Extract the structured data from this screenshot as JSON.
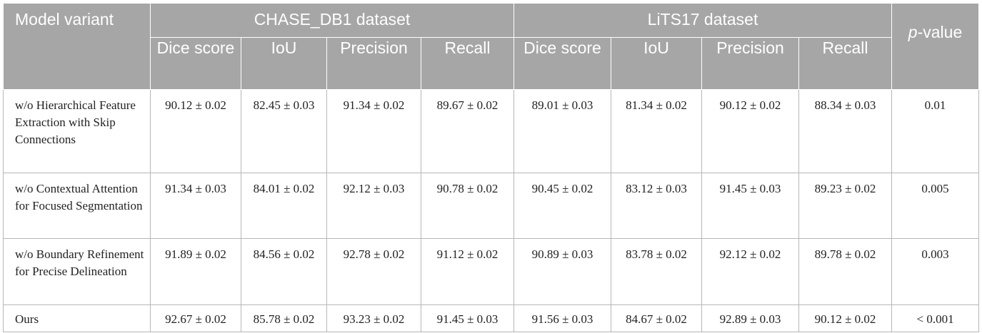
{
  "header": {
    "model_variant": "Model variant",
    "group_chase": "CHASE_DB1 dataset",
    "group_lits": "LiTS17 dataset",
    "p_italic": "p",
    "p_suffix": "-value",
    "metrics": [
      "Dice score",
      "IoU",
      "Precision",
      "Recall",
      "Dice score",
      "IoU",
      "Precision",
      "Recall"
    ]
  },
  "rows": [
    {
      "variant": "w/o Hierarchical Feature Extraction with Skip Connections",
      "values": [
        "90.12 ± 0.02",
        "82.45 ± 0.03",
        "91.34 ± 0.02",
        "89.67 ± 0.02",
        "89.01 ± 0.03",
        "81.34 ± 0.02",
        "90.12 ± 0.02",
        "88.34 ± 0.03"
      ],
      "p": "0.01"
    },
    {
      "variant": "w/o Contextual Attention for Focused Segmentation",
      "values": [
        "91.34 ± 0.03",
        "84.01 ± 0.02",
        "92.12 ± 0.03",
        "90.78 ± 0.02",
        "90.45 ± 0.02",
        "83.12 ± 0.03",
        "91.45 ± 0.03",
        "89.23 ± 0.02"
      ],
      "p": "0.005"
    },
    {
      "variant": "w/o Boundary Refinement for Precise Delineation",
      "values": [
        "91.89 ± 0.02",
        "84.56 ± 0.02",
        "92.78 ± 0.02",
        "91.12 ± 0.02",
        "90.89 ± 0.03",
        "83.78 ± 0.02",
        "92.12 ± 0.02",
        "89.78 ± 0.02"
      ],
      "p": "0.003"
    },
    {
      "variant": "Ours",
      "values": [
        "92.67 ± 0.02",
        "85.78 ± 0.02",
        "93.23 ± 0.02",
        "91.45 ± 0.03",
        "91.56 ± 0.03",
        "84.67 ± 0.02",
        "92.89 ± 0.03",
        "90.12 ± 0.02"
      ],
      "p": "< 0.001"
    }
  ]
}
